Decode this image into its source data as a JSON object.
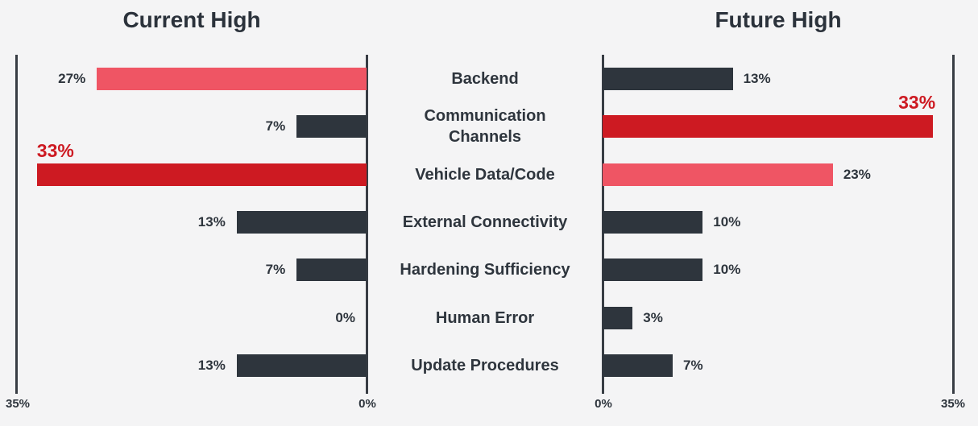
{
  "page": {
    "background_color": "#f4f4f5"
  },
  "chart_data": {
    "type": "bar",
    "variant": "diverging-butterfly-horizontal",
    "categories": [
      "Backend",
      "Communication\nChannels",
      "Vehicle Data/Code",
      "External Connectivity",
      "Hardening Sufficiency",
      "Human Error",
      "Update Procedures"
    ],
    "series": [
      {
        "name": "Current High",
        "side": "left",
        "values": [
          27,
          7,
          33,
          13,
          7,
          0,
          13
        ],
        "labels": [
          "27%",
          "7%",
          "33%",
          "13%",
          "7%",
          "0%",
          "13%"
        ],
        "colors": [
          "pink",
          "dark",
          "red",
          "dark",
          "dark",
          "dark",
          "dark"
        ]
      },
      {
        "name": "Future High",
        "side": "right",
        "values": [
          13,
          33,
          23,
          10,
          10,
          3,
          7
        ],
        "labels": [
          "13%",
          "33%",
          "23%",
          "10%",
          "10%",
          "3%",
          "7%"
        ],
        "colors": [
          "dark",
          "red",
          "pink",
          "dark",
          "dark",
          "dark",
          "dark"
        ]
      }
    ],
    "palette": {
      "dark": "#2e353d",
      "red": "#cd1a22",
      "pink": "#ef5564",
      "text": "#2e353d",
      "axis": "#383d44",
      "background": "#f4f4f5"
    },
    "axis": {
      "min": 0,
      "max": 35,
      "left_outer_label": "35%",
      "left_inner_label": "0%",
      "right_inner_label": "0%",
      "right_outer_label": "35%"
    },
    "grid": false,
    "legend": false,
    "emphasis_note": "33% values rendered in red with large red label above bar"
  }
}
